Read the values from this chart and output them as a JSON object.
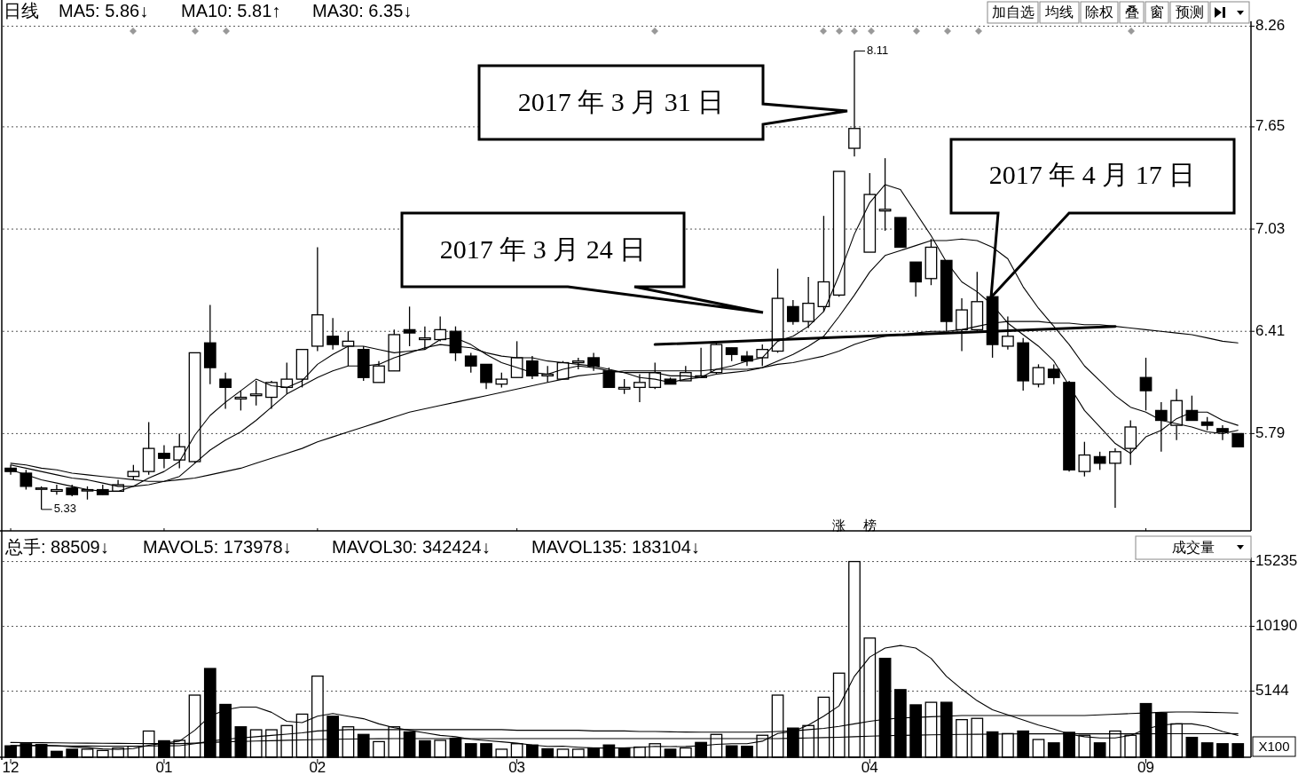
{
  "chart_data": [
    {
      "type": "candlestick",
      "title": "日线",
      "categories": [
        "12",
        null,
        null,
        null,
        null,
        null,
        null,
        null,
        null,
        null,
        "01",
        null,
        null,
        null,
        null,
        null,
        null,
        null,
        null,
        null,
        "02",
        null,
        null,
        null,
        null,
        null,
        null,
        null,
        null,
        null,
        null,
        null,
        null,
        "03",
        null,
        null,
        null,
        null,
        null,
        null,
        null,
        null,
        null,
        null,
        null,
        null,
        null,
        null,
        null,
        null,
        null,
        null,
        null,
        null,
        null,
        null,
        "04",
        null,
        null,
        null,
        null,
        null,
        null,
        null,
        null,
        null,
        null,
        null,
        null,
        null,
        null,
        null,
        null,
        null,
        "09",
        null,
        null,
        null,
        null,
        null,
        null
      ],
      "ohlc": [
        [
          5.58,
          5.6,
          5.54,
          5.56
        ],
        [
          5.55,
          5.57,
          5.45,
          5.47
        ],
        [
          5.46,
          5.47,
          5.33,
          5.46
        ],
        [
          5.44,
          5.48,
          5.42,
          5.45
        ],
        [
          5.46,
          5.48,
          5.41,
          5.42
        ],
        [
          5.45,
          5.47,
          5.39,
          5.45
        ],
        [
          5.45,
          5.48,
          5.42,
          5.42
        ],
        [
          5.44,
          5.51,
          5.44,
          5.48
        ],
        [
          5.53,
          5.6,
          5.51,
          5.56
        ],
        [
          5.56,
          5.86,
          5.54,
          5.7
        ],
        [
          5.67,
          5.72,
          5.58,
          5.64
        ],
        [
          5.63,
          5.79,
          5.58,
          5.71
        ],
        [
          5.62,
          6.28,
          5.61,
          6.28
        ],
        [
          6.34,
          6.57,
          6.09,
          6.19
        ],
        [
          6.12,
          6.16,
          5.94,
          6.07
        ],
        [
          6.0,
          6.05,
          5.93,
          6.01
        ],
        [
          6.02,
          6.11,
          5.96,
          6.03
        ],
        [
          6.01,
          6.11,
          5.94,
          6.1
        ],
        [
          6.07,
          6.22,
          6.03,
          6.12
        ],
        [
          6.12,
          6.3,
          6.07,
          6.3
        ],
        [
          6.32,
          6.92,
          6.29,
          6.51
        ],
        [
          6.38,
          6.49,
          6.3,
          6.33
        ],
        [
          6.32,
          6.41,
          6.2,
          6.35
        ],
        [
          6.3,
          6.32,
          6.11,
          6.13
        ],
        [
          6.1,
          6.23,
          6.1,
          6.2
        ],
        [
          6.17,
          6.42,
          6.17,
          6.39
        ],
        [
          6.42,
          6.56,
          6.32,
          6.4
        ],
        [
          6.36,
          6.44,
          6.3,
          6.37
        ],
        [
          6.36,
          6.5,
          6.35,
          6.42
        ],
        [
          6.41,
          6.44,
          6.23,
          6.28
        ],
        [
          6.26,
          6.28,
          6.16,
          6.2
        ],
        [
          6.21,
          6.21,
          6.06,
          6.1
        ],
        [
          6.09,
          6.16,
          6.07,
          6.12
        ],
        [
          6.13,
          6.35,
          6.13,
          6.25
        ],
        [
          6.23,
          6.26,
          6.12,
          6.14
        ],
        [
          6.14,
          6.2,
          6.1,
          6.15
        ],
        [
          6.12,
          6.23,
          6.12,
          6.22
        ],
        [
          6.22,
          6.25,
          6.18,
          6.23
        ],
        [
          6.25,
          6.28,
          6.17,
          6.2
        ],
        [
          6.17,
          6.19,
          6.07,
          6.07
        ],
        [
          6.06,
          6.12,
          6.03,
          6.07
        ],
        [
          6.07,
          6.15,
          5.98,
          6.1
        ],
        [
          6.07,
          6.22,
          6.06,
          6.16
        ],
        [
          6.12,
          6.13,
          6.09,
          6.09
        ],
        [
          6.11,
          6.2,
          6.11,
          6.16
        ],
        [
          6.13,
          6.31,
          6.13,
          6.14
        ],
        [
          6.16,
          6.35,
          6.15,
          6.33
        ],
        [
          6.31,
          6.31,
          6.23,
          6.27
        ],
        [
          6.26,
          6.29,
          6.2,
          6.23
        ],
        [
          6.25,
          6.33,
          6.2,
          6.3
        ],
        [
          6.29,
          6.79,
          6.28,
          6.61
        ],
        [
          6.56,
          6.6,
          6.45,
          6.47
        ],
        [
          6.47,
          6.74,
          6.43,
          6.58
        ],
        [
          6.56,
          7.11,
          6.53,
          6.71
        ],
        [
          6.63,
          7.38,
          6.62,
          7.38
        ],
        [
          7.52,
          8.11,
          7.47,
          7.64
        ],
        [
          6.89,
          7.37,
          6.89,
          7.24
        ],
        [
          7.14,
          7.46,
          7.02,
          7.15
        ],
        [
          7.1,
          7.1,
          6.92,
          6.92
        ],
        [
          6.83,
          6.83,
          6.62,
          6.71
        ],
        [
          6.73,
          6.97,
          6.69,
          6.92
        ],
        [
          6.84,
          6.84,
          6.41,
          6.47
        ],
        [
          6.42,
          6.61,
          6.29,
          6.54
        ],
        [
          6.42,
          6.77,
          6.41,
          6.59
        ],
        [
          6.62,
          6.62,
          6.25,
          6.33
        ],
        [
          6.32,
          6.5,
          6.3,
          6.38
        ],
        [
          6.34,
          6.37,
          6.05,
          6.11
        ],
        [
          6.09,
          6.21,
          6.07,
          6.19
        ],
        [
          6.18,
          6.21,
          6.09,
          6.13
        ],
        [
          6.1,
          6.11,
          5.56,
          5.57
        ],
        [
          5.56,
          5.74,
          5.53,
          5.66
        ],
        [
          5.65,
          5.68,
          5.57,
          5.61
        ],
        [
          5.61,
          5.7,
          5.34,
          5.68
        ],
        [
          5.7,
          5.87,
          5.6,
          5.83
        ],
        [
          6.13,
          6.25,
          5.93,
          6.05
        ],
        [
          5.93,
          5.98,
          5.68,
          5.87
        ],
        [
          5.84,
          6.06,
          5.75,
          5.99
        ],
        [
          5.93,
          6.02,
          5.87,
          5.87
        ],
        [
          5.86,
          5.89,
          5.81,
          5.84
        ],
        [
          5.82,
          5.84,
          5.75,
          5.8
        ],
        [
          5.79,
          5.79,
          5.71,
          5.71
        ]
      ],
      "series": [
        {
          "type": "line",
          "color": "#000000",
          "values": [
            5.57,
            5.54,
            5.51,
            5.49,
            5.47,
            5.45,
            5.44,
            5.44,
            5.47,
            5.52,
            5.56,
            5.62,
            5.78,
            5.9,
            5.98,
            6.05,
            6.12,
            6.08,
            6.07,
            6.11,
            6.21,
            6.27,
            6.32,
            6.32,
            6.3,
            6.28,
            6.29,
            6.3,
            6.36,
            6.37,
            6.33,
            6.27,
            6.22,
            6.19,
            6.16,
            6.15,
            6.18,
            6.2,
            6.19,
            6.17,
            6.16,
            6.13,
            6.12,
            6.1,
            6.12,
            6.13,
            6.18,
            6.2,
            6.23,
            6.25,
            6.35,
            6.38,
            6.44,
            6.53,
            6.75,
            7.0,
            7.19,
            7.3,
            7.27,
            7.13,
            6.99,
            6.83,
            6.71,
            6.65,
            6.57,
            6.46,
            6.39,
            6.32,
            6.23,
            6.08,
            5.93,
            5.83,
            5.73,
            5.67,
            5.77,
            5.81,
            5.88,
            5.92,
            5.92,
            5.87,
            5.84
          ]
        },
        {
          "type": "line",
          "color": "#000000",
          "values": [
            5.6,
            5.58,
            5.56,
            5.54,
            5.52,
            5.51,
            5.49,
            5.47,
            5.47,
            5.48,
            5.5,
            5.53,
            5.61,
            5.69,
            5.75,
            5.8,
            5.87,
            5.95,
            6.03,
            6.08,
            6.13,
            6.17,
            6.2,
            6.2,
            6.21,
            6.25,
            6.28,
            6.31,
            6.33,
            6.32,
            6.31,
            6.28,
            6.26,
            6.25,
            6.25,
            6.23,
            6.22,
            6.21,
            6.2,
            6.18,
            6.16,
            6.16,
            6.16,
            6.14,
            6.14,
            6.13,
            6.15,
            6.16,
            6.17,
            6.19,
            6.23,
            6.27,
            6.32,
            6.38,
            6.5,
            6.63,
            6.77,
            6.87,
            6.9,
            6.93,
            6.96,
            6.96,
            6.97,
            6.96,
            6.92,
            6.85,
            6.68,
            6.55,
            6.44,
            6.33,
            6.2,
            6.11,
            6.02,
            5.95,
            5.92,
            5.87,
            5.85,
            5.83,
            5.8,
            5.79,
            5.81
          ]
        },
        {
          "type": "line",
          "color": "#000000",
          "values": [
            5.61,
            5.6,
            5.58,
            5.57,
            5.55,
            5.54,
            5.53,
            5.52,
            5.51,
            5.5,
            5.5,
            5.51,
            5.52,
            5.54,
            5.56,
            5.58,
            5.61,
            5.64,
            5.67,
            5.7,
            5.74,
            5.77,
            5.8,
            5.83,
            5.86,
            5.89,
            5.92,
            5.94,
            5.96,
            5.98,
            6.0,
            6.02,
            6.04,
            6.06,
            6.08,
            6.1,
            6.12,
            6.14,
            6.15,
            6.16,
            6.17,
            6.17,
            6.17,
            6.17,
            6.17,
            6.17,
            6.18,
            6.18,
            6.18,
            6.19,
            6.21,
            6.22,
            6.24,
            6.26,
            6.29,
            6.33,
            6.36,
            6.38,
            6.39,
            6.4,
            6.41,
            6.41,
            6.42,
            6.44,
            6.46,
            6.47,
            6.47,
            6.47,
            6.46,
            6.46,
            6.45,
            6.45,
            6.44,
            6.43,
            6.42,
            6.41,
            6.4,
            6.39,
            6.37,
            6.35,
            6.34
          ]
        },
        {
          "type": "line",
          "color": "#000000",
          "values": [
            null,
            null,
            null,
            null,
            null,
            null,
            null,
            null,
            null,
            null,
            null,
            null,
            null,
            null,
            null,
            null,
            null,
            null,
            null,
            null,
            null,
            null,
            null,
            null,
            null,
            null,
            null,
            null,
            null,
            null,
            null,
            null,
            null,
            null,
            null,
            null,
            null,
            null,
            null,
            null,
            null,
            null,
            6.33,
            null,
            null,
            null,
            null,
            null,
            null,
            null,
            null,
            null,
            null,
            null,
            null,
            null,
            null,
            null,
            null,
            null,
            null,
            null,
            null,
            null,
            null,
            null,
            null,
            null,
            null,
            null,
            null,
            null,
            6.44,
            null,
            null,
            null,
            null,
            null,
            null,
            null,
            null
          ]
        }
      ],
      "ylim": [
        5.2,
        8.29
      ],
      "yticks": [
        5.79,
        6.41,
        7.03,
        7.65,
        8.26
      ],
      "grid": "y",
      "tick_labels": "y",
      "annotations": [
        "MA5: 5.86↓",
        "MA10: 5.81↑",
        "MA30: 6.35↓",
        "8.11",
        "5.33",
        "2017 年 3 月 31 日",
        "2017 年 3 月 24 日",
        "2017 年 4 月 17 日",
        "涨",
        "榜",
        "加自选",
        "均线",
        "除权",
        "叠",
        "窗",
        "预测"
      ]
    },
    {
      "type": "bar",
      "categories": [
        "12",
        null,
        null,
        null,
        null,
        null,
        null,
        null,
        null,
        null,
        "01",
        null,
        null,
        null,
        null,
        null,
        null,
        null,
        null,
        null,
        "02",
        null,
        null,
        null,
        null,
        null,
        null,
        null,
        null,
        null,
        null,
        null,
        null,
        "03",
        null,
        null,
        null,
        null,
        null,
        null,
        null,
        null,
        null,
        null,
        null,
        null,
        null,
        null,
        null,
        null,
        null,
        null,
        null,
        null,
        null,
        null,
        "04",
        null,
        null,
        null,
        null,
        null,
        null,
        null,
        null,
        null,
        null,
        null,
        null,
        null,
        null,
        null,
        null,
        null,
        "09",
        null,
        null,
        null,
        null,
        null,
        null
      ],
      "series": [
        {
          "values": [
            888,
            1053,
            987,
            461,
            625,
            625,
            526,
            724,
            855,
            2040,
            1283,
            1316,
            4836,
            6909,
            4113,
            2369,
            2139,
            2139,
            2468,
            3356,
            6317,
            3191,
            2369,
            1777,
            1217,
            2369,
            1974,
            1283,
            1316,
            1481,
            1053,
            1053,
            625,
            1053,
            954,
            658,
            625,
            625,
            724,
            954,
            724,
            790,
            1053,
            625,
            724,
            1152,
            1777,
            888,
            855,
            1711,
            4836,
            2270,
            2468,
            4672,
            6547,
            15235,
            9278,
            7699,
            5264,
            4080,
            4277,
            4277,
            2928,
            3027,
            1974,
            1842,
            2040,
            1382,
            1119,
            1941,
            1711,
            1119,
            2040,
            1711,
            4178,
            3422,
            2599,
            1546,
            1119,
            1053,
            1053
          ],
          "colors": [
            "#000000",
            "#000000",
            "#000000",
            "#000000",
            "#000000",
            "#ffffff",
            "#ffffff",
            "#ffffff",
            "#ffffff",
            "#ffffff",
            "#000000",
            "#ffffff",
            "#ffffff",
            "#000000",
            "#000000",
            "#000000",
            "#ffffff",
            "#ffffff",
            "#ffffff",
            "#ffffff",
            "#ffffff",
            "#000000",
            "#ffffff",
            "#000000",
            "#ffffff",
            "#ffffff",
            "#000000",
            "#000000",
            "#ffffff",
            "#000000",
            "#000000",
            "#000000",
            "#ffffff",
            "#ffffff",
            "#000000",
            "#000000",
            "#ffffff",
            "#ffffff",
            "#000000",
            "#000000",
            "#000000",
            "#ffffff",
            "#ffffff",
            "#000000",
            "#ffffff",
            "#000000",
            "#ffffff",
            "#000000",
            "#000000",
            "#ffffff",
            "#ffffff",
            "#000000",
            "#ffffff",
            "#ffffff",
            "#ffffff",
            "#ffffff",
            "#ffffff",
            "#000000",
            "#000000",
            "#000000",
            "#ffffff",
            "#000000",
            "#ffffff",
            "#ffffff",
            "#000000",
            "#ffffff",
            "#000000",
            "#ffffff",
            "#000000",
            "#000000",
            "#ffffff",
            "#000000",
            "#ffffff",
            "#ffffff",
            "#000000",
            "#000000",
            "#ffffff",
            "#000000",
            "#000000",
            "#000000",
            "#000000"
          ]
        },
        {
          "type": "line",
          "color": "#000000",
          "values": [
            900,
            920,
            940,
            900,
            800,
            750,
            650,
            600,
            670,
            930,
            1100,
            1250,
            2100,
            3200,
            3700,
            3900,
            3900,
            3500,
            2800,
            2700,
            3200,
            3400,
            3200,
            3000,
            2600,
            2300,
            2100,
            1900,
            1700,
            1600,
            1400,
            1300,
            1200,
            1100,
            950,
            850,
            860,
            780,
            720,
            720,
            730,
            780,
            850,
            830,
            840,
            900,
            1000,
            1050,
            1050,
            1250,
            1850,
            2000,
            2500,
            3200,
            4000,
            6300,
            7800,
            8500,
            8700,
            8500,
            7700,
            6300,
            5300,
            4400,
            3700,
            3300,
            2900,
            2500,
            2200,
            1800,
            1600,
            1500,
            1500,
            1700,
            2200,
            2500,
            2600,
            2600,
            2400,
            2000,
            1700
          ]
        },
        {
          "type": "line",
          "color": "#000000",
          "values": [
            900,
            900,
            900,
            890,
            880,
            870,
            860,
            860,
            860,
            880,
            890,
            900,
            1050,
            1250,
            1400,
            1500,
            1600,
            1700,
            1800,
            1900,
            2050,
            2100,
            2150,
            2150,
            2150,
            2150,
            2150,
            2150,
            2150,
            2150,
            2150,
            2150,
            2150,
            2100,
            2100,
            2100,
            2100,
            2100,
            2050,
            2050,
            2050,
            2000,
            2000,
            1980,
            1960,
            1950,
            1950,
            1950,
            1950,
            1950,
            2000,
            2050,
            2150,
            2250,
            2400,
            2600,
            2800,
            2950,
            3050,
            3100,
            3150,
            3200,
            3250,
            3250,
            3250,
            3250,
            3250,
            3250,
            3250,
            3250,
            3250,
            3300,
            3350,
            3400,
            3450,
            3500,
            3520,
            3520,
            3500,
            3470,
            3440
          ]
        },
        {
          "type": "line",
          "color": "#000000",
          "values": [
            1150,
            1140,
            1130,
            1120,
            1110,
            1100,
            1090,
            1080,
            1070,
            1060,
            1060,
            1060,
            1100,
            1150,
            1200,
            1230,
            1260,
            1290,
            1320,
            1350,
            1380,
            1400,
            1420,
            1430,
            1440,
            1450,
            1450,
            1450,
            1450,
            1450,
            1450,
            1450,
            1450,
            1450,
            1450,
            1450,
            1450,
            1450,
            1450,
            1450,
            1450,
            1450,
            1450,
            1450,
            1450,
            1450,
            1450,
            1450,
            1450,
            1450,
            1450,
            1480,
            1500,
            1530,
            1560,
            1600,
            1640,
            1680,
            1700,
            1720,
            1740,
            1760,
            1780,
            1790,
            1800,
            1810,
            1820,
            1820,
            1820,
            1820,
            1820,
            1820,
            1820,
            1820,
            1820,
            1830,
            1830,
            1830,
            1830,
            1830,
            1830
          ]
        }
      ],
      "ylim": [
        0,
        15550
      ],
      "yticks": [
        5144,
        10190,
        15235
      ],
      "grid": "y",
      "annotations": [
        "总手: 88509↓",
        "MAVOL5: 173978↓",
        "MAVOL30: 342424↓",
        "MAVOL135: 183104↓",
        "成交量",
        "X100"
      ]
    }
  ]
}
